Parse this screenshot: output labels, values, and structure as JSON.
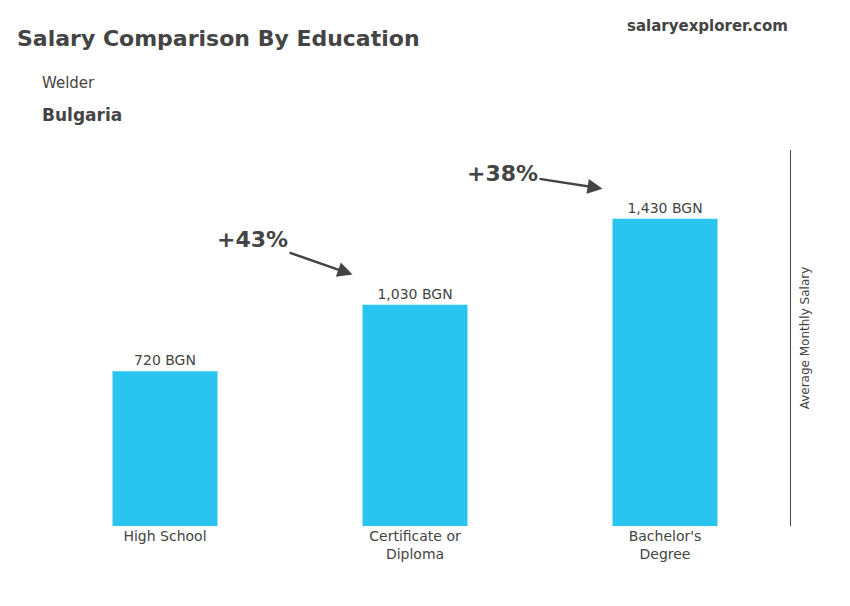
{
  "chart_data": {
    "type": "bar",
    "title": "Salary Comparison By Education",
    "subtitle": [
      "Welder",
      "Bulgaria"
    ],
    "ylabel": "Average Monthly Salary",
    "categories": [
      "High School",
      "Certificate or\nDiploma",
      "Bachelor's\nDegree"
    ],
    "values": [
      720,
      1030,
      1430
    ],
    "value_labels": [
      "720 BGN",
      "1,030 BGN",
      "1,430 BGN"
    ],
    "data_labels": true,
    "color": "#29c5f0",
    "ylim": [
      0,
      1750
    ],
    "grid": false,
    "tick_labels": "x",
    "annotations": [
      {
        "text": "+43%",
        "from": 0,
        "to": 1
      },
      {
        "text": "+38%",
        "from": 1,
        "to": 2
      },
      {
        "text": "salaryexplorer.com"
      }
    ]
  }
}
